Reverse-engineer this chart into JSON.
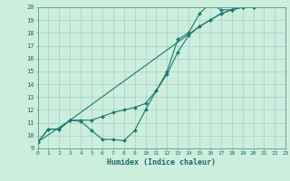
{
  "title": "",
  "xlabel": "Humidex (Indice chaleur)",
  "ylabel": "",
  "bg_color": "#cceedd",
  "grid_color": "#aacccc",
  "line_color": "#1a7a6e",
  "xmin": 0,
  "xmax": 23,
  "ymin": 9,
  "ymax": 20,
  "series": [
    {
      "x": [
        0,
        1,
        2,
        3,
        4,
        5,
        6,
        7,
        8,
        9,
        10,
        11,
        12,
        13,
        14,
        15,
        16,
        17,
        18,
        19,
        20,
        21,
        22,
        23
      ],
      "y": [
        9.5,
        10.5,
        10.5,
        11.2,
        11.1,
        10.4,
        9.7,
        9.7,
        9.6,
        10.4,
        12.0,
        13.5,
        15.0,
        17.5,
        18.0,
        19.5,
        20.3,
        19.8,
        19.8,
        20.0,
        20.0,
        20.2,
        20.5,
        20.5
      ]
    },
    {
      "x": [
        0,
        1,
        2,
        3,
        4,
        5,
        6,
        7,
        8,
        9,
        10,
        11,
        12,
        13,
        14,
        15,
        16,
        17,
        18,
        19,
        20,
        21,
        22,
        23
      ],
      "y": [
        9.5,
        10.5,
        10.5,
        11.2,
        11.2,
        11.2,
        11.5,
        11.8,
        12.0,
        12.2,
        12.5,
        13.5,
        14.8,
        16.5,
        17.8,
        18.5,
        19.0,
        19.5,
        19.8,
        20.0,
        20.0,
        20.2,
        20.5,
        20.5
      ]
    },
    {
      "x": [
        0,
        3,
        15,
        16,
        17,
        18,
        19,
        20,
        21,
        22,
        23
      ],
      "y": [
        9.5,
        11.2,
        18.5,
        19.0,
        19.5,
        19.8,
        20.0,
        20.0,
        20.2,
        20.5,
        20.5
      ]
    }
  ],
  "yticks": [
    9,
    10,
    11,
    12,
    13,
    14,
    15,
    16,
    17,
    18,
    19,
    20
  ],
  "xticks": [
    0,
    1,
    2,
    3,
    4,
    5,
    6,
    7,
    8,
    9,
    10,
    11,
    12,
    13,
    14,
    15,
    16,
    17,
    18,
    19,
    20,
    21,
    22,
    23
  ]
}
